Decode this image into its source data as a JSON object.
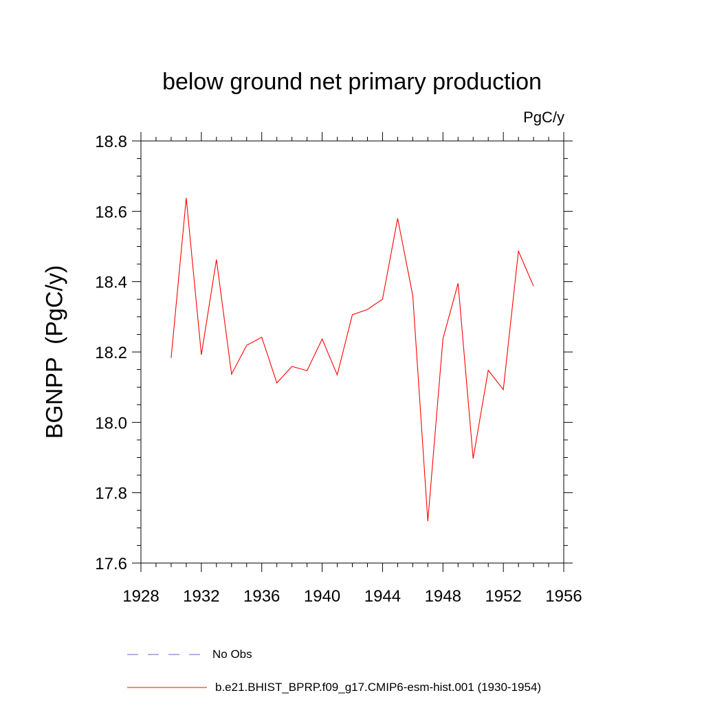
{
  "chart_data": {
    "type": "line",
    "title": "below ground net primary production",
    "units_label": "PgC/y",
    "ylabel": "BGNPP  (PgC/y)",
    "xlabel": "",
    "xlim": [
      1928,
      1956
    ],
    "ylim": [
      17.6,
      18.8
    ],
    "x_ticks": [
      1928,
      1932,
      1936,
      1940,
      1944,
      1948,
      1952,
      1956
    ],
    "y_ticks": [
      17.6,
      17.8,
      18.0,
      18.2,
      18.4,
      18.6,
      18.8
    ],
    "y_tick_labels": [
      "17.6",
      "17.8",
      "18.0",
      "18.2",
      "18.4",
      "18.6",
      "18.8"
    ],
    "series": [
      {
        "name": "b.e21.BHIST_BPRP.f09_g17.CMIP6-esm-hist.001 (1930-1954)",
        "color": "#ff0000",
        "x": [
          1930,
          1931,
          1932,
          1933,
          1934,
          1935,
          1936,
          1937,
          1938,
          1939,
          1940,
          1941,
          1942,
          1943,
          1944,
          1945,
          1946,
          1947,
          1948,
          1949,
          1950,
          1951,
          1952,
          1953,
          1954
        ],
        "values": [
          18.183,
          18.638,
          18.192,
          18.463,
          18.137,
          18.219,
          18.242,
          18.112,
          18.159,
          18.147,
          18.237,
          18.135,
          18.306,
          18.321,
          18.35,
          18.58,
          18.36,
          17.719,
          18.238,
          18.395,
          17.897,
          18.148,
          18.093,
          18.487,
          18.387
        ]
      }
    ],
    "legend": [
      {
        "label": "No Obs",
        "color": "#6666bb",
        "style": "dashed"
      },
      {
        "label": "b.e21.BHIST_BPRP.f09_g17.CMIP6-esm-hist.001 (1930-1954)",
        "color": "#ff0000",
        "style": "solid"
      }
    ]
  }
}
